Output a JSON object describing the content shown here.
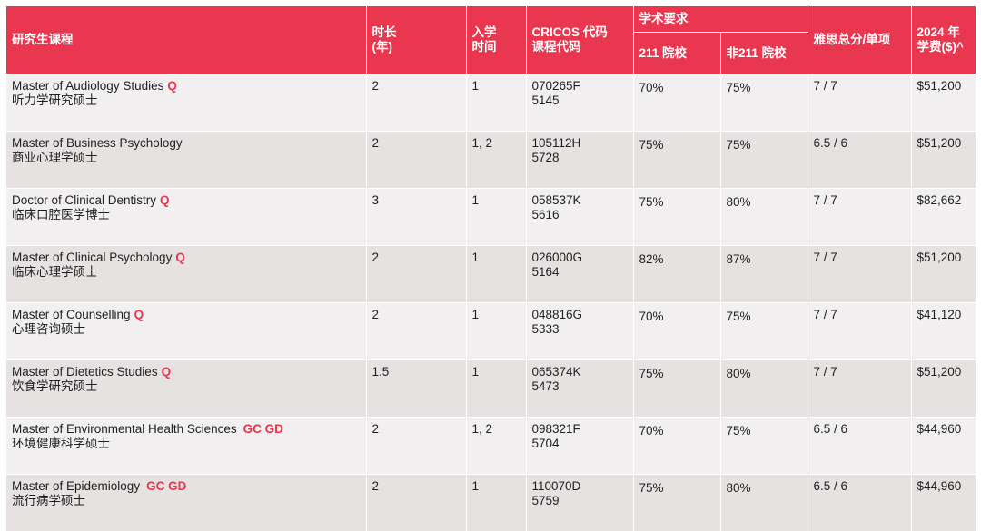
{
  "header": {
    "program": "研究生课程",
    "duration": "时长\n(年)",
    "intake": "入学\n时间",
    "cricos": "CRICOS 代码\n课程代码",
    "academic": "学术要求",
    "c211": "211 院校",
    "non211": "非211 院校",
    "ielts": "雅思总分/单项",
    "fee": "2024 年\n学费($)^"
  },
  "rows": [
    {
      "en": "Master of Audiology Studies",
      "tag": "Q",
      "zh": "听力学研究硕士",
      "duration": "2",
      "intake": "1",
      "cricos": "070265F",
      "code": "5145",
      "r211": "70%",
      "rnon": "75%",
      "ielts": "7 / 7",
      "fee": "$51,200"
    },
    {
      "en": "Master of Business Psychology",
      "tag": "",
      "zh": "商业心理学硕士",
      "duration": "2",
      "intake": "1, 2",
      "cricos": "105112H",
      "code": "5728",
      "r211": "75%",
      "rnon": "75%",
      "ielts": "6.5 / 6",
      "fee": "$51,200"
    },
    {
      "en": "Doctor of Clinical Dentistry",
      "tag": "Q",
      "zh": "临床口腔医学博士",
      "duration": "3",
      "intake": "1",
      "cricos": "058537K",
      "code": "5616",
      "r211": "75%",
      "rnon": "80%",
      "ielts": "7 / 7",
      "fee": "$82,662"
    },
    {
      "en": "Master of Clinical Psychology",
      "tag": "Q",
      "zh": "临床心理学硕士",
      "duration": "2",
      "intake": "1",
      "cricos": "026000G",
      "code": "5164",
      "r211": "82%",
      "rnon": "87%",
      "ielts": "7 / 7",
      "fee": "$51,200"
    },
    {
      "en": "Master of Counselling",
      "tag": "Q",
      "zh": "心理咨询硕士",
      "duration": "2",
      "intake": "1",
      "cricos": "048816G",
      "code": "5333",
      "r211": "70%",
      "rnon": "75%",
      "ielts": "7 / 7",
      "fee": "$41,120"
    },
    {
      "en": "Master of Dietetics Studies",
      "tag": "Q",
      "zh": "饮食学研究硕士",
      "duration": "1.5",
      "intake": "1",
      "cricos": "065374K",
      "code": "5473",
      "r211": "75%",
      "rnon": "80%",
      "ielts": "7 / 7",
      "fee": "$51,200"
    },
    {
      "en": "Master of Environmental Health Sciences",
      "tag": "GC GD",
      "zh": "环境健康科学硕士",
      "duration": "2",
      "intake": "1, 2",
      "cricos": "098321F",
      "code": "5704",
      "r211": "70%",
      "rnon": "75%",
      "ielts": "6.5 / 6",
      "fee": "$44,960"
    },
    {
      "en": "Master of Epidemiology",
      "tag": "GC GD",
      "zh": "流行病学硕士",
      "duration": "2",
      "intake": "1",
      "cricos": "110070D",
      "code": "5759",
      "r211": "75%",
      "rnon": "80%",
      "ielts": "6.5 / 6",
      "fee": "$44,960"
    }
  ]
}
